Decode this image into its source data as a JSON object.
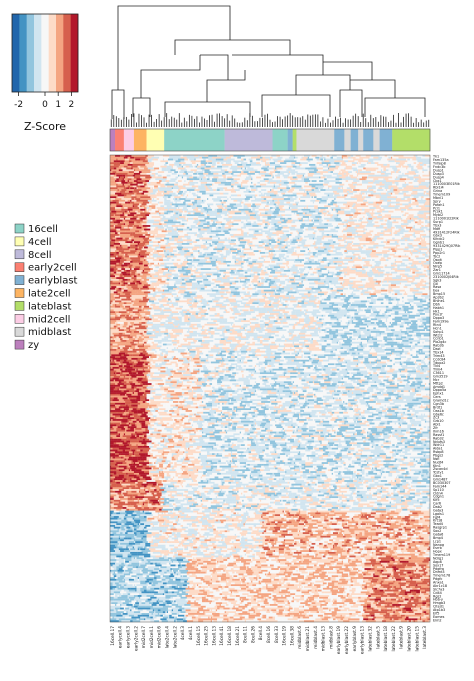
{
  "chart_data": {
    "type": "heatmap",
    "color_key": {
      "title": "Z-Score",
      "ticks": [
        -2,
        0,
        1,
        2
      ],
      "tick_labels": [
        "-2",
        "0",
        "1",
        "2"
      ],
      "range": [
        -2.5,
        2.5
      ],
      "palette": [
        "#2166ac",
        "#4393c3",
        "#92c5de",
        "#d1e5f0",
        "#f7f7f7",
        "#fddbc7",
        "#f4a582",
        "#d6604d",
        "#b2182b"
      ]
    },
    "legend": {
      "placement": "left",
      "items": [
        {
          "name": "16cell",
          "color": "#8dd3c7"
        },
        {
          "name": "4cell",
          "color": "#ffffb3"
        },
        {
          "name": "8cell",
          "color": "#bebada"
        },
        {
          "name": "early2cell",
          "color": "#fb8072"
        },
        {
          "name": "earlyblast",
          "color": "#80b1d3"
        },
        {
          "name": "late2cell",
          "color": "#fdb462"
        },
        {
          "name": "lateblast",
          "color": "#b3de69"
        },
        {
          "name": "mid2cell",
          "color": "#fccde5"
        },
        {
          "name": "midblast",
          "color": "#d9d9d9"
        },
        {
          "name": "zy",
          "color": "#bc80bd"
        }
      ]
    },
    "column_groups": [
      {
        "group": "zy",
        "count": 4
      },
      {
        "group": "early2cell",
        "count": 7
      },
      {
        "group": "mid2cell",
        "count": 8
      },
      {
        "group": "late2cell",
        "count": 10
      },
      {
        "group": "4cell",
        "count": 14
      },
      {
        "group": "16cell",
        "count": 48
      },
      {
        "group": "8cell",
        "count": 38
      },
      {
        "group": "16cell",
        "count": 12
      },
      {
        "group": "earlyblast",
        "count": 4
      },
      {
        "group": "lateblast",
        "count": 3
      },
      {
        "group": "midblast",
        "count": 30
      },
      {
        "group": "earlyblast",
        "count": 8
      },
      {
        "group": "midblast",
        "count": 5
      },
      {
        "group": "earlyblast",
        "count": 6
      },
      {
        "group": "midblast",
        "count": 4
      },
      {
        "group": "earlyblast",
        "count": 8
      },
      {
        "group": "midblast",
        "count": 5
      },
      {
        "group": "earlyblast",
        "count": 10
      },
      {
        "group": "lateblast",
        "count": 30
      }
    ],
    "column_labels": [
      "16cell.17",
      "earlycell.4",
      "earlycell.3",
      "early2cell.2",
      "mid2cell.7",
      "mid2cell.1",
      "mid2cell.6",
      "late2cell.4",
      "late2cell.2",
      "4cell.3",
      "4cell.1",
      "16cell.15",
      "16cell.25",
      "16cell.13",
      "16cell.41",
      "16cell.18",
      "16cell.21",
      "8cell.11",
      "8cell.26",
      "8cell.4",
      "8cell.16",
      "8cell.33",
      "16cell.19",
      "16cell.38",
      "midblast.6",
      "midblast.21",
      "midblast.4",
      "midblast.13",
      "midblast.8",
      "earlyblast.19",
      "earlyblast.22",
      "earlyblast.9",
      "earlyblast.13",
      "lateblast.32",
      "lateblast.5",
      "lateblast.18",
      "lateblast.22",
      "lateblast.9",
      "lateblast.20",
      "lateblast.15",
      "lateblast.3"
    ],
    "row_labels": [
      "Tk1",
      "Fam135a",
      "Tnfaip8",
      "Fndc3b",
      "Dusp1",
      "Dusp3",
      "Dusp4",
      "Cbx1",
      "1110003E01Rik",
      "Rbl1l4",
      "Grina",
      "Tmem109",
      "Mbnl1",
      "Spry",
      "Pafah1",
      "Pcl1",
      "Pcsk1",
      "Mybl2",
      "1110001I22Rik",
      "Surp1",
      "Tbx3",
      "Mdfi",
      "4931412F24Rik",
      "Gbx3",
      "Klhdc2",
      "Ggnb1",
      "9331429Q07Rik",
      "Plpp1",
      "Ppp2r1",
      "Tsc2",
      "Osqit",
      "Ooep",
      "Nlrp5",
      "Zar1",
      "Gm11714",
      "2310002J04Rik",
      "Sgk3",
      "Gtl",
      "Rasa",
      "Eea",
      "Bmp15",
      "Ap3b2",
      "Bhlhe1",
      "Dbh",
      "Habh1",
      "Hk1",
      "Pou1f",
      "Dppa3",
      "Fam199a",
      "Rtn4",
      "Hcn1",
      "Sohp1",
      "Wtcl2",
      "Ccnb1",
      "Pla2g4c",
      "Rab3b",
      "Dazl",
      "Tbx14",
      "Trim43",
      "Ccdc84",
      "Tdpoz2",
      "Tlx4",
      "Trim4",
      "C3611",
      "Gm3519",
      "Mcr",
      "Mttp2",
      "Amdd1",
      "Dppa5a",
      "Ephx1",
      "Cers",
      "Gramd1c",
      "Cgn3b",
      "Brdt1",
      "Oas1b",
      "Gbe6c",
      "Zc3",
      "Grb10",
      "Abl1",
      "Zfr",
      "Ihm16",
      "Rassf1",
      "Rab32",
      "Ndufs3",
      "Wdr11",
      "Aida1",
      "Rsbp8",
      "Pbgs2",
      "Nsfl",
      "Nudt4",
      "Ktn1",
      "Zscan4d",
      "Tcstv1",
      "Gbx1",
      "Gm1487",
      "BC030307",
      "Fam144",
      "Sp110",
      "Cldn4",
      "Cdgn1",
      "Klf5",
      "Car6",
      "Dab2",
      "Gata3",
      "Lgals1",
      "Fgf4",
      "Krt18",
      "Tead4",
      "Rasgrp1",
      "Sox2",
      "Gata6",
      "Bmp4",
      "Lcp1",
      "Nanog",
      "Esrrb",
      "Hopx",
      "Tmem119",
      "Ndrg1",
      "Aqp8",
      "Sox17",
      "Pdgfra",
      "Dnmt3",
      "Tmem178",
      "Pdgfc",
      "Anxa1",
      "Akr1c18",
      "Slc7a3",
      "Cd44",
      "Rgs2",
      "Hbb-y",
      "Hmgb3",
      "Cited1",
      "Atp1b3",
      "Elf5",
      "Eomes",
      "Elm2"
    ]
  }
}
